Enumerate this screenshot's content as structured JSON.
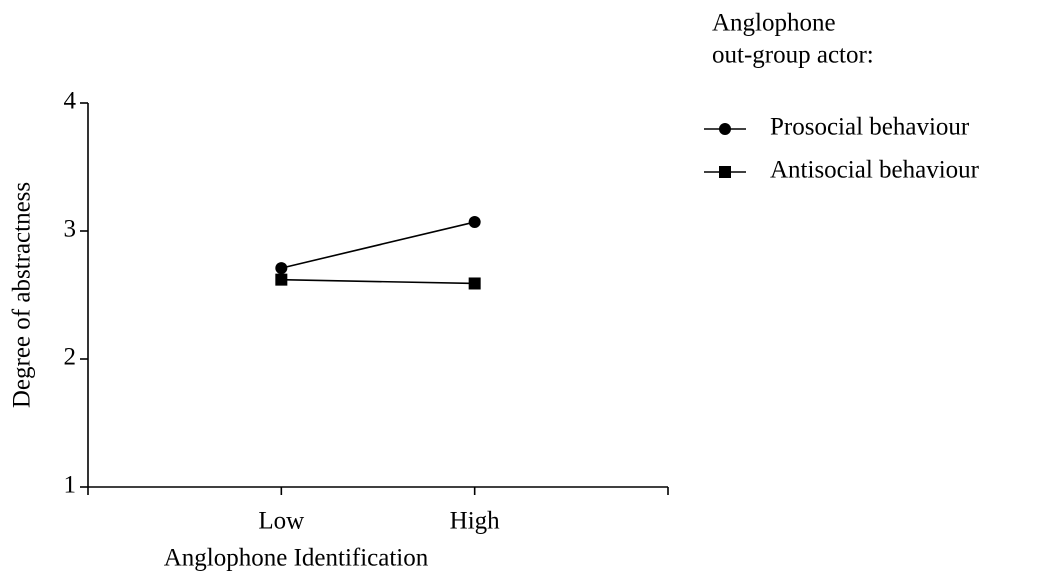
{
  "chart_data": {
    "type": "line",
    "categories": [
      "Low",
      "High"
    ],
    "xlabel": "Anglophone Identification",
    "ylabel": "Degree of abstractness",
    "legend_title": [
      "Anglophone",
      "out-group actor:"
    ],
    "series": [
      {
        "name": "Prosocial behaviour",
        "color": "#000000",
        "marker": "circle",
        "values": [
          2.71,
          3.07
        ]
      },
      {
        "name": "Antisocial behaviour",
        "color": "#000000",
        "marker": "square",
        "values": [
          2.62,
          2.59
        ]
      }
    ],
    "ylim": [
      1,
      4
    ],
    "yticks": [
      1,
      2,
      3,
      4
    ],
    "legend": "right"
  }
}
